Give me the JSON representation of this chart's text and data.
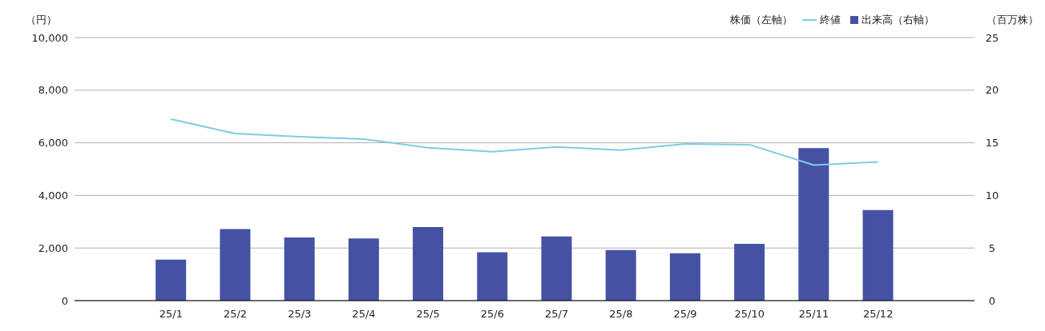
{
  "chart_data": {
    "type": "bar",
    "ylabel": "（円）",
    "y2label": "（百万株）",
    "legend_title": "株価（左軸）",
    "categories": [
      null,
      "25/1",
      "25/2",
      "25/3",
      "25/4",
      "25/5",
      "25/6",
      "25/7",
      "25/8",
      "25/9",
      "25/10",
      "25/11",
      "25/12",
      null
    ],
    "series": [
      {
        "name": "終値",
        "type": "line",
        "color": "#7ecde3",
        "values": [
          null,
          6900,
          6350,
          6230,
          6140,
          5810,
          5660,
          5840,
          5720,
          5960,
          5930,
          5150,
          5270,
          null
        ]
      },
      {
        "name": "出来高（右軸）",
        "axis": "y2",
        "color": "#4552a3",
        "values": [
          null,
          3.9,
          6.8,
          6.0,
          5.9,
          7.0,
          4.6,
          6.1,
          4.8,
          4.5,
          5.4,
          14.5,
          8.6,
          null
        ]
      }
    ],
    "ylim": [
      0,
      10000
    ],
    "yticks": [
      0,
      {
        "value": 2000,
        "label": "2,000"
      },
      {
        "value": 4000,
        "label": "4,000"
      },
      {
        "value": 6000,
        "label": "6,000"
      },
      {
        "value": 8000,
        "label": "8,000"
      },
      {
        "value": 10000,
        "label": "10,000"
      }
    ],
    "y2lim": [
      0,
      25
    ],
    "y2ticks": [
      0,
      5,
      10,
      15,
      20,
      25
    ],
    "grid": "y",
    "legend": "top right",
    "marker": "none",
    "line_style": "solid"
  }
}
